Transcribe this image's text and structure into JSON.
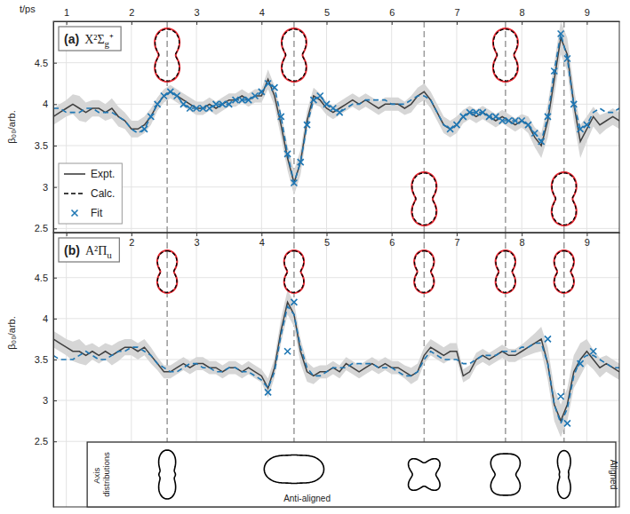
{
  "chart_data": [
    {
      "type": "line",
      "label": "(a)",
      "title": "X²Σg⁺",
      "xlabel": "t/ps",
      "ylabel": "β₀₀/arb.",
      "xlim": [
        0.8,
        9.5
      ],
      "xticks": [
        1,
        2,
        3,
        4,
        5,
        6,
        7,
        8,
        9
      ],
      "ylim": [
        2.45,
        5.0
      ],
      "yticks": [
        2.5,
        3,
        3.5,
        4,
        4.5
      ],
      "grid": true,
      "legend": "lower left",
      "x": [
        0.8,
        0.9,
        1,
        1.1,
        1.2,
        1.3,
        1.4,
        1.5,
        1.6,
        1.7,
        1.8,
        1.9,
        2,
        2.1,
        2.2,
        2.3,
        2.4,
        2.5,
        2.6,
        2.7,
        2.8,
        2.9,
        3,
        3.1,
        3.2,
        3.3,
        3.4,
        3.5,
        3.6,
        3.7,
        3.8,
        3.9,
        4,
        4.1,
        4.2,
        4.3,
        4.4,
        4.5,
        4.6,
        4.7,
        4.8,
        4.9,
        5,
        5.1,
        5.2,
        5.3,
        5.4,
        5.5,
        5.6,
        5.7,
        5.8,
        5.9,
        6,
        6.1,
        6.2,
        6.3,
        6.4,
        6.5,
        6.6,
        6.7,
        6.8,
        6.9,
        7,
        7.1,
        7.2,
        7.3,
        7.4,
        7.5,
        7.6,
        7.7,
        7.8,
        7.9,
        8,
        8.1,
        8.2,
        8.3,
        8.4,
        8.5,
        8.6,
        8.7,
        8.8,
        8.9,
        9,
        9.1,
        9.2,
        9.3,
        9.4,
        9.5
      ],
      "series": [
        {
          "name": "Expt.",
          "color": "#404040",
          "line_style": "solid",
          "values": [
            3.85,
            3.9,
            3.95,
            4.0,
            3.95,
            3.9,
            3.95,
            3.95,
            3.9,
            3.95,
            3.85,
            3.8,
            3.7,
            3.7,
            3.75,
            3.85,
            4.0,
            4.1,
            4.15,
            4.1,
            4.05,
            4.0,
            3.95,
            3.95,
            4.0,
            3.95,
            4.0,
            4.05,
            4.05,
            4.1,
            4.05,
            4.1,
            4.1,
            4.3,
            4.1,
            3.75,
            3.35,
            3.05,
            3.3,
            3.8,
            4.1,
            4.05,
            3.95,
            3.9,
            3.95,
            4.0,
            4.05,
            4.0,
            4.05,
            4.0,
            3.95,
            4.0,
            4.0,
            4.0,
            3.95,
            4.0,
            4.1,
            4.15,
            4.05,
            3.9,
            3.75,
            3.7,
            3.75,
            3.85,
            3.9,
            3.85,
            3.9,
            3.85,
            3.8,
            3.85,
            3.8,
            3.75,
            3.8,
            3.75,
            3.6,
            3.5,
            3.8,
            4.3,
            4.8,
            4.6,
            4.0,
            3.55,
            3.7,
            3.85,
            3.75,
            3.8,
            3.85,
            3.8
          ],
          "error": [
            0.1,
            0.1,
            0.1,
            0.12,
            0.15,
            0.12,
            0.1,
            0.1,
            0.1,
            0.12,
            0.12,
            0.1,
            0.1,
            0.1,
            0.1,
            0.1,
            0.08,
            0.08,
            0.08,
            0.08,
            0.08,
            0.08,
            0.08,
            0.08,
            0.08,
            0.08,
            0.08,
            0.08,
            0.08,
            0.08,
            0.08,
            0.08,
            0.08,
            0.12,
            0.12,
            0.15,
            0.15,
            0.15,
            0.15,
            0.12,
            0.1,
            0.08,
            0.08,
            0.08,
            0.08,
            0.08,
            0.08,
            0.08,
            0.08,
            0.08,
            0.08,
            0.08,
            0.08,
            0.08,
            0.08,
            0.1,
            0.1,
            0.1,
            0.1,
            0.1,
            0.1,
            0.1,
            0.1,
            0.08,
            0.08,
            0.08,
            0.08,
            0.08,
            0.08,
            0.08,
            0.08,
            0.08,
            0.08,
            0.1,
            0.12,
            0.15,
            0.2,
            0.2,
            0.2,
            0.2,
            0.2,
            0.2,
            0.15,
            0.12,
            0.12,
            0.1,
            0.1,
            0.1
          ]
        },
        {
          "name": "Calc.",
          "color": "#1f77b4",
          "line_style": "dashed",
          "values": [
            3.95,
            3.95,
            3.9,
            3.9,
            3.9,
            3.95,
            3.95,
            3.9,
            3.9,
            3.9,
            3.85,
            3.8,
            3.7,
            3.65,
            3.7,
            3.85,
            4.0,
            4.1,
            4.15,
            4.1,
            4.0,
            3.95,
            3.95,
            3.95,
            3.95,
            4.0,
            4.0,
            4.0,
            4.05,
            4.05,
            4.05,
            4.1,
            4.15,
            4.25,
            4.2,
            3.85,
            3.4,
            3.05,
            3.3,
            3.75,
            4.05,
            4.1,
            4.0,
            3.95,
            3.9,
            3.95,
            4.0,
            4.0,
            4.05,
            4.05,
            4.05,
            4.05,
            4.0,
            4.0,
            4.0,
            4.05,
            4.1,
            4.1,
            4.05,
            3.9,
            3.75,
            3.7,
            3.75,
            3.85,
            3.9,
            3.9,
            3.9,
            3.85,
            3.85,
            3.8,
            3.8,
            3.8,
            3.8,
            3.75,
            3.65,
            3.55,
            3.85,
            4.4,
            4.85,
            4.55,
            4.0,
            3.7,
            3.75,
            3.9,
            3.95,
            3.9,
            3.9,
            3.95
          ]
        },
        {
          "name": "Fit",
          "color": "#1f77b4",
          "type": "scatter",
          "marker": "x",
          "x": [
            2.2,
            2.3,
            2.4,
            2.5,
            2.6,
            2.7,
            2.8,
            2.9,
            3,
            3.1,
            3.2,
            3.3,
            3.4,
            3.5,
            3.6,
            3.7,
            3.8,
            3.9,
            4,
            4.1,
            4.2,
            4.3,
            4.4,
            4.5,
            4.6,
            4.7,
            4.8,
            4.9,
            5,
            5.1,
            5.2,
            6.9,
            7,
            7.1,
            7.2,
            7.3,
            7.4,
            7.5,
            7.6,
            7.7,
            7.8,
            7.9,
            8,
            8.1,
            8.2,
            8.3,
            8.4,
            8.5,
            8.6,
            8.7,
            8.8,
            8.9,
            9
          ],
          "values": [
            3.7,
            3.85,
            4.0,
            4.1,
            4.15,
            4.1,
            4.0,
            3.95,
            3.95,
            3.95,
            3.95,
            4.0,
            4.0,
            4.0,
            4.05,
            4.05,
            4.05,
            4.1,
            4.15,
            4.25,
            4.2,
            3.85,
            3.4,
            3.05,
            3.3,
            3.75,
            4.05,
            4.1,
            4.0,
            3.95,
            3.9,
            3.7,
            3.75,
            3.85,
            3.9,
            3.9,
            3.9,
            3.85,
            3.85,
            3.8,
            3.8,
            3.8,
            3.8,
            3.75,
            3.65,
            3.55,
            3.85,
            4.4,
            4.85,
            4.55,
            4.0,
            3.7,
            3.75
          ]
        }
      ],
      "vlines": [
        2.55,
        4.5,
        6.5,
        7.75,
        8.65
      ],
      "insets": [
        {
          "t": 2.55,
          "position": "top"
        },
        {
          "t": 4.5,
          "position": "top"
        },
        {
          "t": 6.5,
          "position": "bottom"
        },
        {
          "t": 7.75,
          "position": "top"
        },
        {
          "t": 8.65,
          "position": "bottom"
        }
      ]
    },
    {
      "type": "line",
      "label": "(b)",
      "title": "A²Πu",
      "ylabel": "β₀₀/arb.",
      "xlim": [
        0.8,
        9.5
      ],
      "xticks": [
        1,
        2,
        3,
        4,
        5,
        6,
        7,
        8,
        9
      ],
      "ylim": [
        1.7,
        5.05
      ],
      "yticks": [
        2.5,
        3,
        3.5,
        4,
        4.5
      ],
      "grid": true,
      "x": [
        0.8,
        0.9,
        1,
        1.1,
        1.2,
        1.3,
        1.4,
        1.5,
        1.6,
        1.7,
        1.8,
        1.9,
        2,
        2.1,
        2.2,
        2.3,
        2.4,
        2.5,
        2.6,
        2.7,
        2.8,
        2.9,
        3,
        3.1,
        3.2,
        3.3,
        3.4,
        3.5,
        3.6,
        3.7,
        3.8,
        3.9,
        4,
        4.1,
        4.2,
        4.3,
        4.4,
        4.5,
        4.6,
        4.7,
        4.8,
        4.9,
        5,
        5.1,
        5.2,
        5.3,
        5.4,
        5.5,
        5.6,
        5.7,
        5.8,
        5.9,
        6,
        6.1,
        6.2,
        6.3,
        6.4,
        6.5,
        6.6,
        6.7,
        6.8,
        6.9,
        7,
        7.1,
        7.2,
        7.3,
        7.4,
        7.5,
        7.6,
        7.7,
        7.8,
        7.9,
        8,
        8.1,
        8.2,
        8.3,
        8.4,
        8.5,
        8.6,
        8.7,
        8.8,
        8.9,
        9,
        9.1,
        9.2,
        9.3,
        9.4,
        9.5
      ],
      "series": [
        {
          "name": "Expt.",
          "color": "#404040",
          "line_style": "solid",
          "values": [
            3.75,
            3.7,
            3.65,
            3.6,
            3.6,
            3.55,
            3.6,
            3.55,
            3.6,
            3.55,
            3.6,
            3.65,
            3.65,
            3.6,
            3.65,
            3.55,
            3.45,
            3.35,
            3.35,
            3.4,
            3.45,
            3.4,
            3.45,
            3.45,
            3.4,
            3.4,
            3.35,
            3.4,
            3.4,
            3.35,
            3.4,
            3.35,
            3.3,
            3.15,
            3.4,
            3.85,
            4.2,
            4.05,
            3.6,
            3.35,
            3.3,
            3.35,
            3.35,
            3.4,
            3.35,
            3.45,
            3.4,
            3.35,
            3.4,
            3.45,
            3.4,
            3.45,
            3.4,
            3.4,
            3.35,
            3.3,
            3.35,
            3.55,
            3.65,
            3.6,
            3.55,
            3.6,
            3.6,
            3.3,
            3.35,
            3.5,
            3.55,
            3.5,
            3.55,
            3.6,
            3.55,
            3.55,
            3.6,
            3.65,
            3.7,
            3.75,
            3.45,
            2.95,
            2.75,
            2.95,
            3.35,
            3.5,
            3.6,
            3.5,
            3.4,
            3.45,
            3.4,
            3.35
          ],
          "error": [
            0.1,
            0.1,
            0.1,
            0.12,
            0.15,
            0.12,
            0.1,
            0.1,
            0.1,
            0.12,
            0.12,
            0.1,
            0.1,
            0.1,
            0.1,
            0.1,
            0.08,
            0.08,
            0.08,
            0.08,
            0.08,
            0.08,
            0.08,
            0.08,
            0.08,
            0.08,
            0.08,
            0.08,
            0.08,
            0.08,
            0.08,
            0.08,
            0.08,
            0.12,
            0.12,
            0.15,
            0.15,
            0.15,
            0.15,
            0.12,
            0.1,
            0.08,
            0.08,
            0.08,
            0.08,
            0.08,
            0.08,
            0.08,
            0.08,
            0.08,
            0.08,
            0.08,
            0.08,
            0.08,
            0.08,
            0.1,
            0.1,
            0.1,
            0.1,
            0.1,
            0.1,
            0.1,
            0.1,
            0.08,
            0.08,
            0.08,
            0.08,
            0.08,
            0.08,
            0.08,
            0.08,
            0.08,
            0.08,
            0.1,
            0.12,
            0.15,
            0.2,
            0.2,
            0.2,
            0.2,
            0.2,
            0.2,
            0.15,
            0.12,
            0.12,
            0.1,
            0.1,
            0.1
          ]
        },
        {
          "name": "Calc.",
          "color": "#1f77b4",
          "line_style": "dashed",
          "values": [
            3.55,
            3.5,
            3.5,
            3.5,
            3.55,
            3.6,
            3.55,
            3.5,
            3.5,
            3.55,
            3.6,
            3.6,
            3.65,
            3.65,
            3.6,
            3.55,
            3.45,
            3.4,
            3.35,
            3.35,
            3.4,
            3.45,
            3.45,
            3.4,
            3.4,
            3.35,
            3.35,
            3.4,
            3.4,
            3.35,
            3.35,
            3.3,
            3.25,
            3.15,
            3.35,
            3.8,
            4.15,
            4.05,
            3.65,
            3.4,
            3.3,
            3.3,
            3.35,
            3.4,
            3.4,
            3.4,
            3.45,
            3.45,
            3.45,
            3.45,
            3.4,
            3.4,
            3.4,
            3.35,
            3.3,
            3.3,
            3.35,
            3.5,
            3.6,
            3.55,
            3.5,
            3.5,
            3.5,
            3.45,
            3.45,
            3.5,
            3.55,
            3.55,
            3.55,
            3.6,
            3.6,
            3.6,
            3.65,
            3.65,
            3.7,
            3.7,
            3.45,
            2.95,
            2.72,
            2.9,
            3.3,
            3.5,
            3.55,
            3.55,
            3.5,
            3.45,
            3.4,
            3.4
          ]
        },
        {
          "name": "Fit",
          "color": "#1f77b4",
          "type": "scatter",
          "marker": "x",
          "x": [
            4.1,
            4.4,
            4.5,
            8.4,
            8.6,
            8.7,
            8.9,
            9.1
          ],
          "values": [
            3.1,
            3.6,
            4.2,
            3.75,
            3.05,
            2.72,
            3.45,
            3.6
          ]
        }
      ],
      "vlines": [
        2.55,
        4.5,
        6.5,
        7.75,
        8.65
      ],
      "insets": [
        {
          "t": 2.55,
          "position": "top"
        },
        {
          "t": 4.5,
          "position": "top"
        },
        {
          "t": 6.5,
          "position": "top"
        },
        {
          "t": 7.75,
          "position": "top"
        },
        {
          "t": 8.65,
          "position": "top"
        }
      ],
      "axis_distributions": {
        "title": "Axis distributions",
        "t": [
          2.55,
          4.5,
          6.5,
          7.75,
          8.65
        ],
        "labels": [
          {
            "text": "Anti-aligned",
            "t": 4.7
          }
        ],
        "end_label": "Aligned"
      }
    }
  ]
}
